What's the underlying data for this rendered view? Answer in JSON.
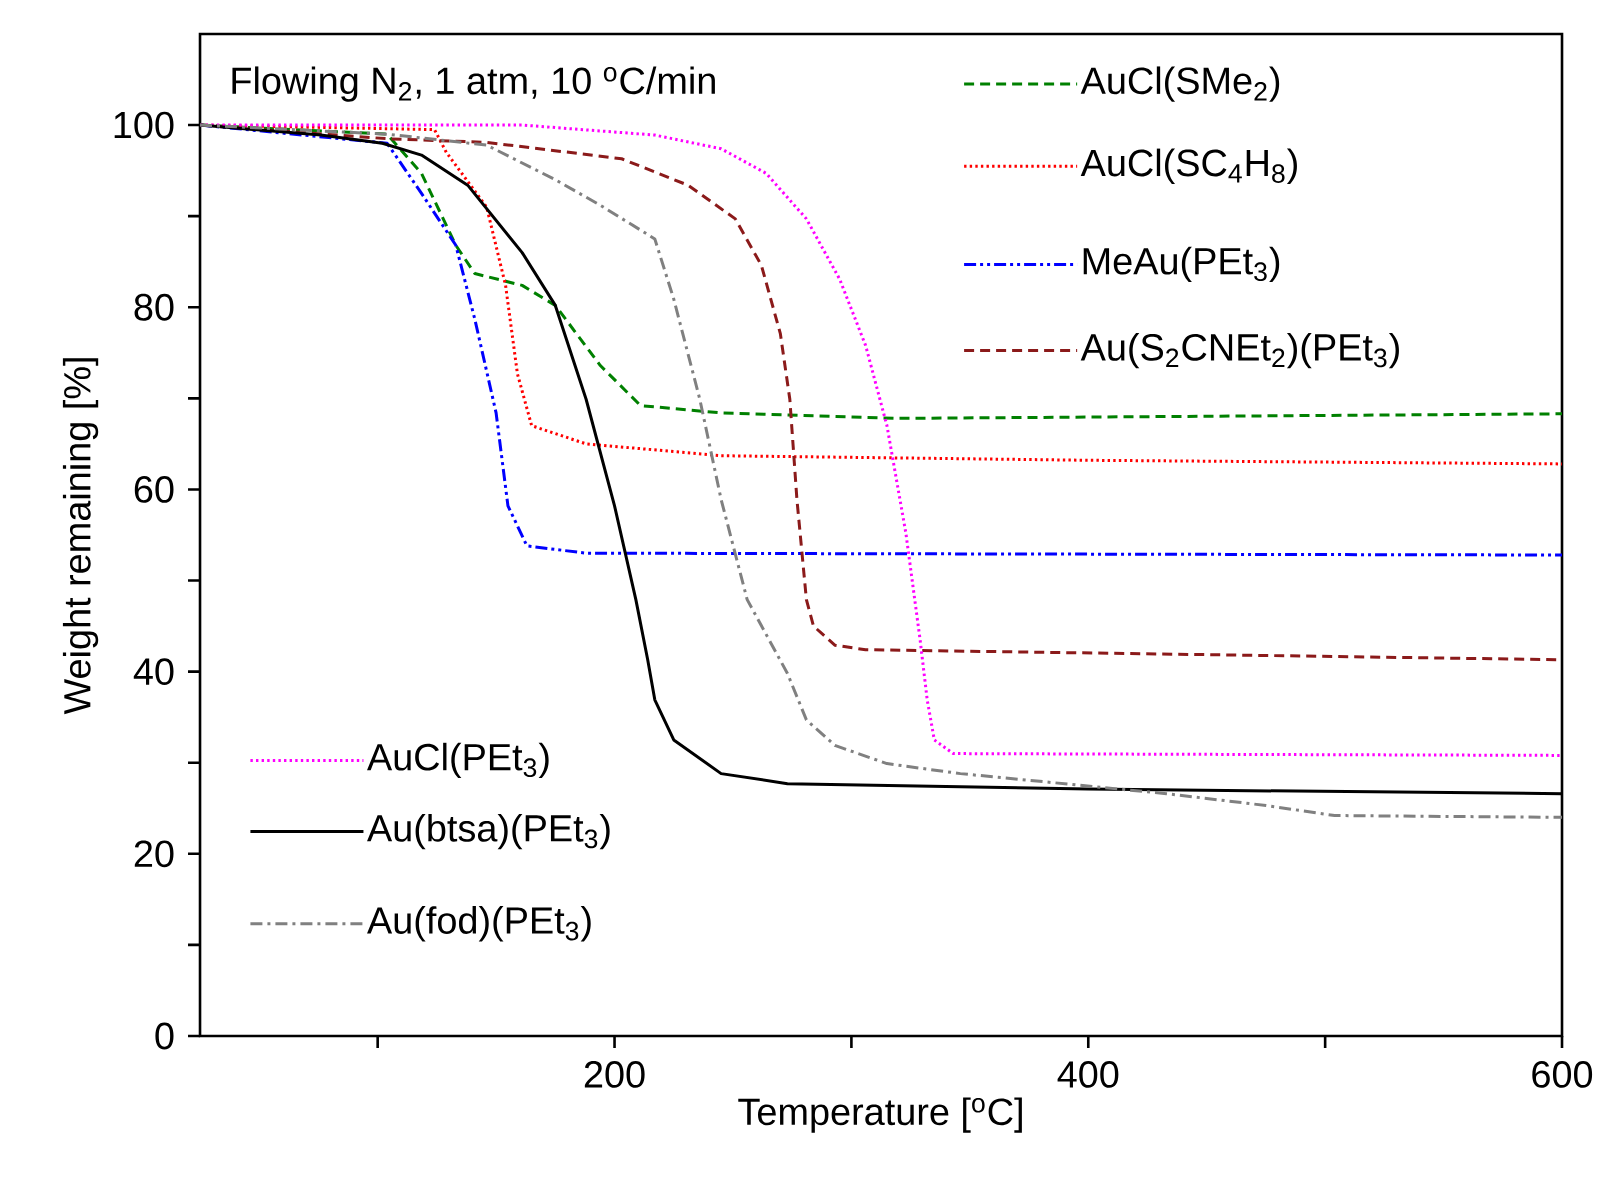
{
  "chart_data": {
    "type": "line",
    "xlabel": "Temperature [$^{o}$C]",
    "ylabel": "Weight remaining [%]",
    "annotations": [
      "Flowing N$_{2}$, 1 atm, 10 $^{o}$C/min"
    ],
    "xlim": [
      25,
      600
    ],
    "ylim": [
      0,
      110
    ],
    "xticks": [
      {
        "value": 100,
        "label": null
      },
      200,
      {
        "value": 300,
        "label": null
      },
      400,
      {
        "value": 500,
        "label": null
      },
      600
    ],
    "yticks": [
      0,
      {
        "value": 10,
        "label": null
      },
      20,
      {
        "value": 30,
        "label": null
      },
      40,
      {
        "value": 50,
        "label": null
      },
      60,
      {
        "value": 70,
        "label": null
      },
      80,
      {
        "value": 90,
        "label": null
      },
      100
    ],
    "grid": false,
    "legend": "top right",
    "marker": "none",
    "series": [
      {
        "name": "AuCl(SMe$_{2}$)",
        "color": "#008000",
        "line_style": "dashed",
        "x": [
          25,
          104,
          118.5,
          133,
          141,
          161,
          175,
          194,
          211,
          245,
          320,
          600
        ],
        "values": [
          100,
          99,
          94.7,
          86.8,
          83.7,
          82.4,
          80.2,
          73.6,
          69.2,
          68.4,
          67.8,
          68.3
        ]
      },
      {
        "name": "AuCl(SC$_{4}$H$_{8}$)",
        "color": "#ff0000",
        "line_style": "dotted",
        "x": [
          25,
          124,
          129,
          146,
          154,
          159,
          165,
          188,
          245,
          400,
          600
        ],
        "values": [
          100,
          99.5,
          97,
          91,
          82.4,
          72.7,
          67,
          65,
          63.7,
          63.2,
          62.8
        ]
      },
      {
        "name": "MeAu(PEt$_{3}$)",
        "color": "#0000ff",
        "line_style": "dashdotdot",
        "x": [
          25,
          104,
          118.5,
          133,
          141,
          150,
          155,
          163,
          188,
          600
        ],
        "values": [
          100,
          98,
          92.5,
          86.8,
          78.7,
          68.4,
          58.2,
          53.8,
          53,
          52.8
        ]
      },
      {
        "name": "Au(S$_{2}$CNEt$_{2}$)(PEt$_{3}$)",
        "color": "#8b1a1a",
        "line_style": "dashed",
        "x": [
          25,
          104,
          146,
          203,
          231,
          251,
          262,
          270,
          274,
          277,
          281,
          284,
          293,
          306,
          600
        ],
        "values": [
          100,
          98.5,
          98.1,
          96.3,
          93.4,
          89.7,
          84.6,
          77.1,
          69.9,
          58.9,
          47.9,
          45,
          42.9,
          42.4,
          41.3
        ]
      },
      {
        "name": "AuCl(PEt$_{3}$)",
        "color": "#ff00ff",
        "line_style": "dotted",
        "x": [
          25,
          161,
          217,
          245,
          264,
          281,
          295,
          306,
          315,
          323,
          329,
          332,
          335,
          343,
          600
        ],
        "values": [
          100,
          100,
          98.9,
          97.4,
          94.7,
          89.7,
          83.1,
          75.8,
          67,
          55.2,
          43.5,
          36.9,
          32.5,
          31,
          30.8
        ]
      },
      {
        "name": "Au(btsa)(PEt$_{3}$)",
        "color": "#000000",
        "line_style": "solid",
        "x": [
          25,
          76,
          102,
          118.5,
          138,
          161,
          175,
          188,
          200,
          209,
          214,
          217,
          225,
          245,
          273,
          400,
          600
        ],
        "values": [
          100,
          98.9,
          98,
          96.7,
          93.4,
          86,
          80.2,
          69.9,
          58.2,
          47.9,
          41.3,
          36.9,
          32.5,
          28.8,
          27.7,
          27.1,
          26.6
        ]
      },
      {
        "name": "Au(fod)(PEt$_{3}$)",
        "color": "#808080",
        "line_style": "dashdot",
        "x": [
          25,
          104,
          146,
          175,
          194,
          217,
          225,
          236,
          245,
          256,
          273,
          281,
          293,
          315,
          346,
          433,
          475,
          504,
          600
        ],
        "values": [
          100,
          99,
          97.8,
          94,
          91.2,
          87.5,
          80.9,
          69.9,
          58.9,
          47.9,
          39.8,
          34.7,
          31.9,
          29.9,
          28.8,
          26.6,
          25.3,
          24.2,
          24.0
        ]
      }
    ]
  }
}
